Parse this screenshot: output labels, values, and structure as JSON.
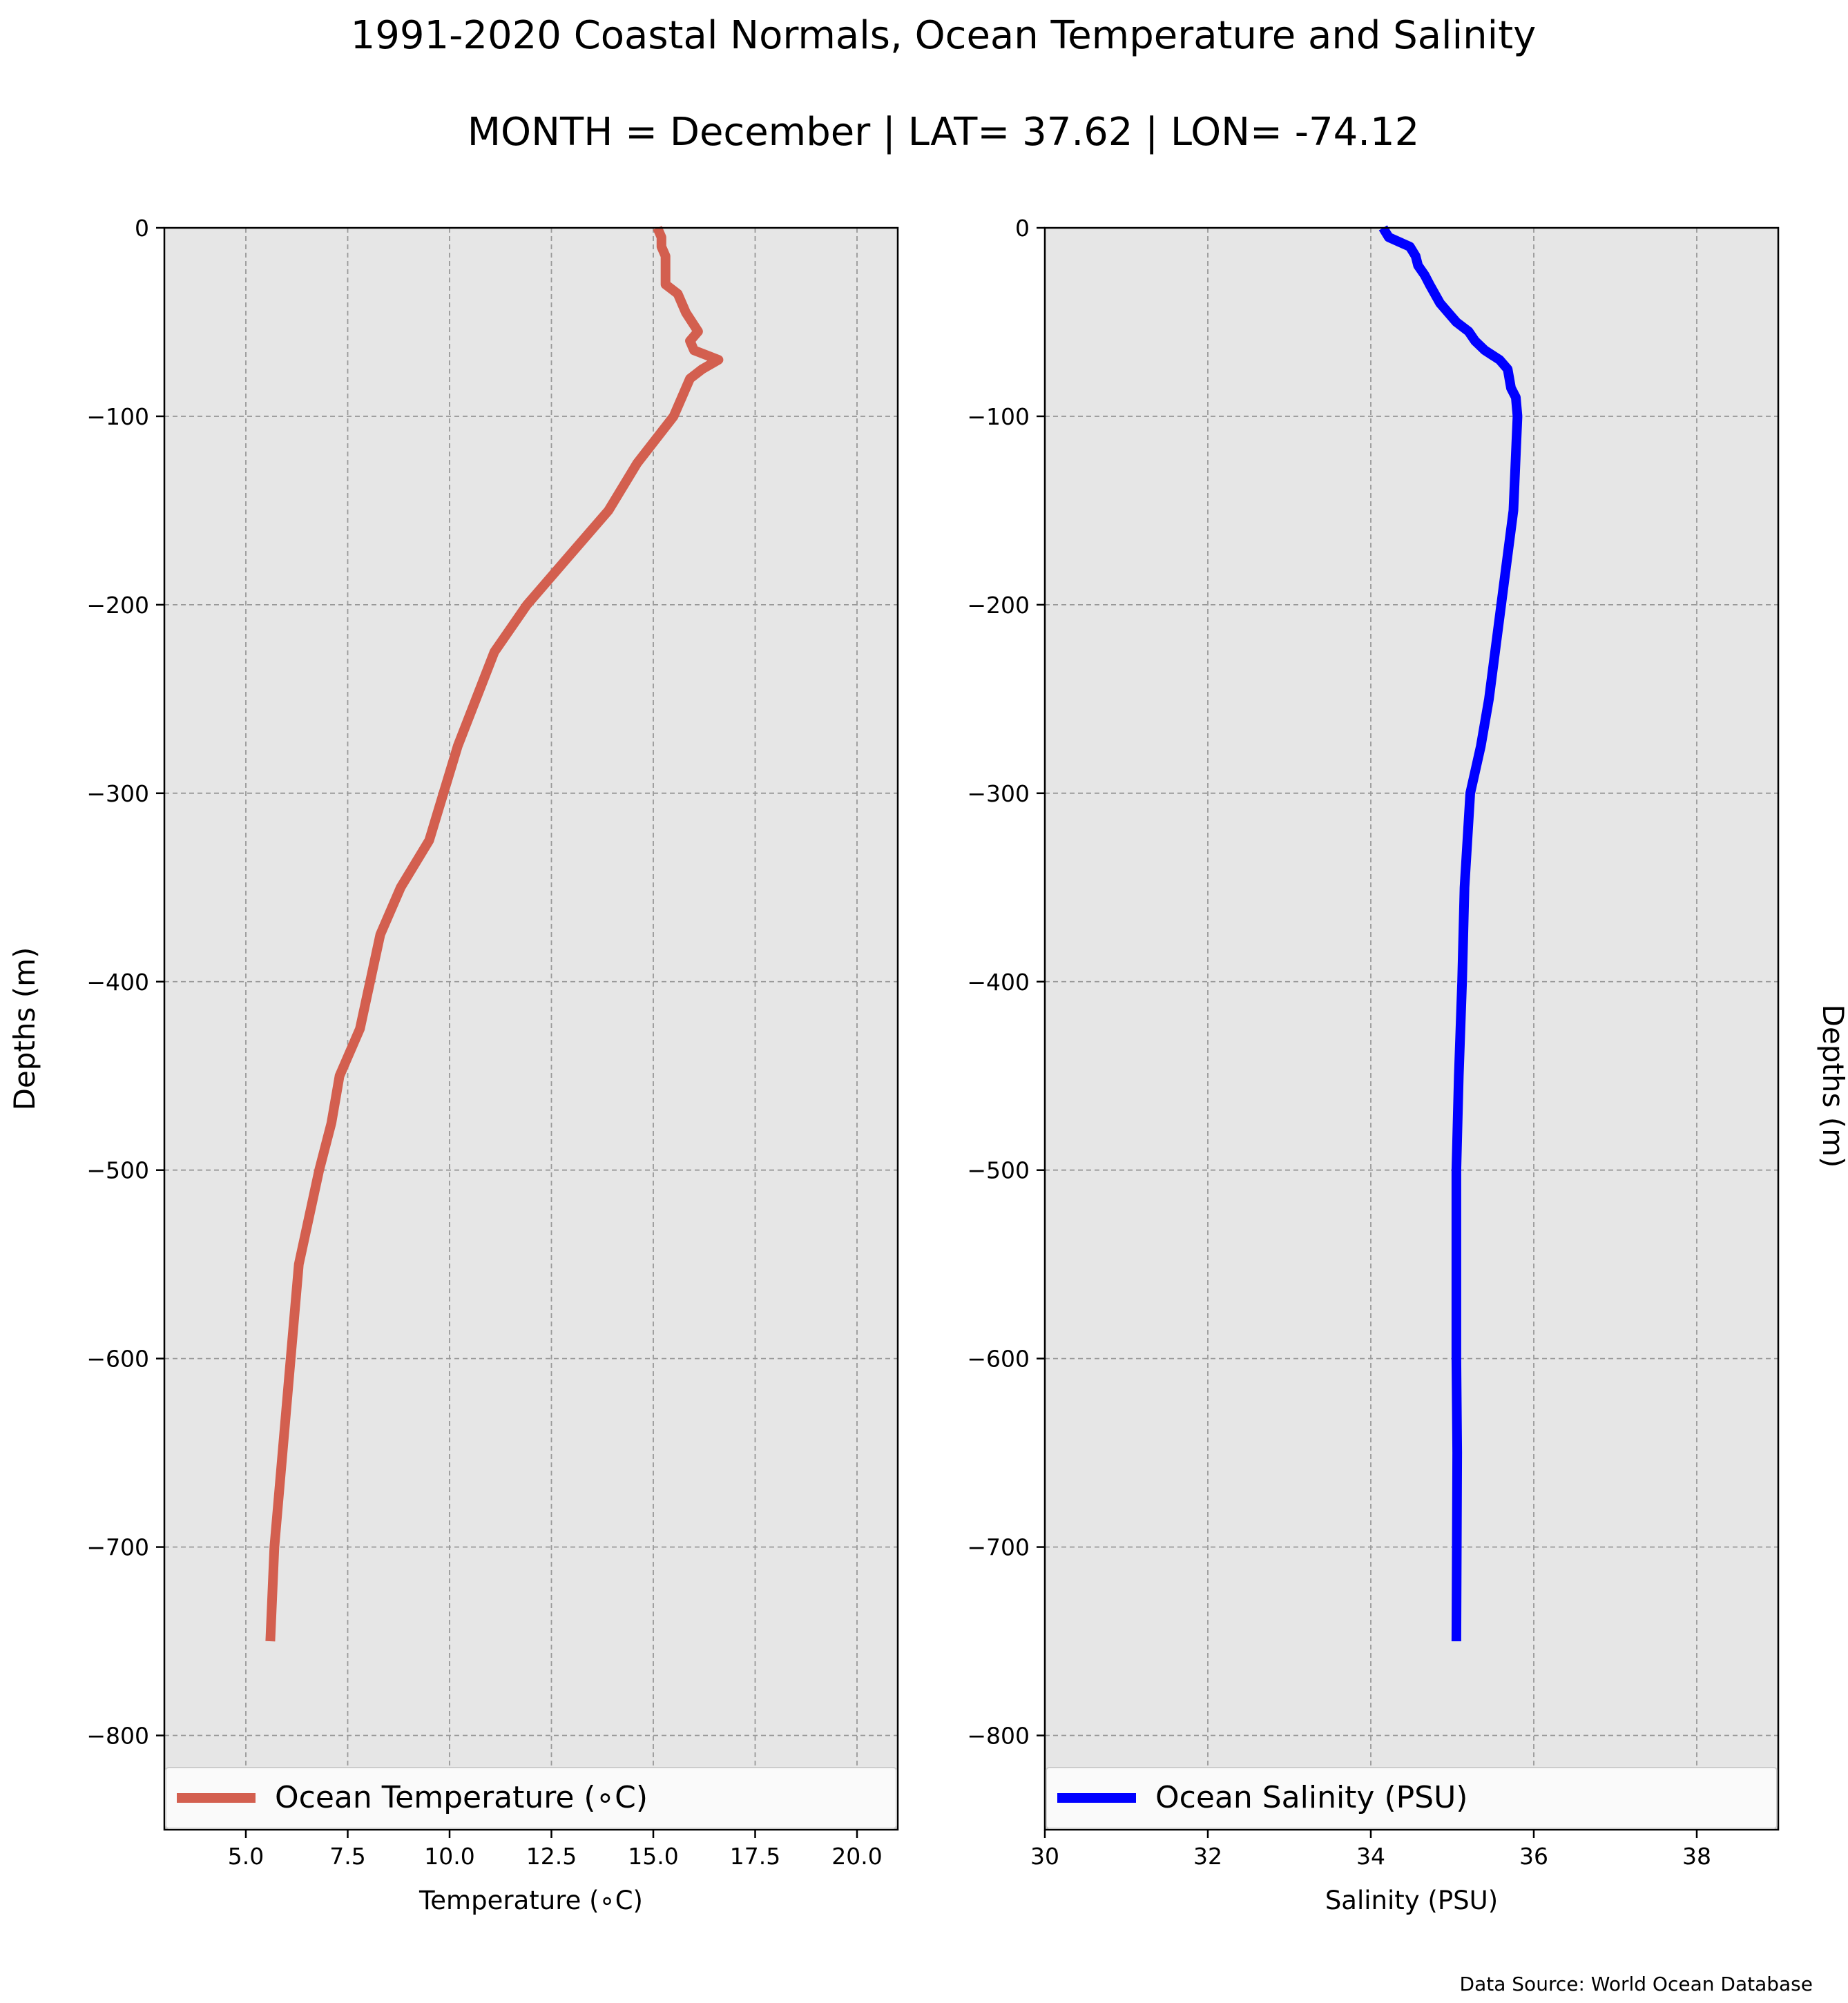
{
  "figure": {
    "title": "1991-2020 Coastal Normals, Ocean Temperature and Salinity",
    "subtitle": "MONTH = December | LAT= 37.62 | LON= -74.12",
    "source_note": "Data Source: World Ocean Database",
    "colors": {
      "temperature": "#d35f4f",
      "salinity": "#0000ff",
      "plot_bg": "#e6e6e6",
      "grid": "#999999"
    }
  },
  "chart_data": [
    {
      "type": "line",
      "xlabel": "Temperature ($^\\circ$C)",
      "xlabel_display": "Temperature (∘C)",
      "ylabel": "Depths (m)",
      "xlim": [
        3,
        21
      ],
      "ylim": [
        -850,
        0
      ],
      "xticks": [
        5.0,
        7.5,
        10.0,
        12.5,
        15.0,
        17.5,
        20.0
      ],
      "xtick_labels": [
        "5.0",
        "7.5",
        "10.0",
        "12.5",
        "15.0",
        "17.5",
        "20.0"
      ],
      "yticks": [
        0,
        -100,
        -200,
        -300,
        -400,
        -500,
        -600,
        -700,
        -800
      ],
      "ytick_labels": [
        "0",
        "−100",
        "−200",
        "−300",
        "−400",
        "−500",
        "−600",
        "−700",
        "−800"
      ],
      "grid": true,
      "legend_position": "bottom",
      "series": [
        {
          "name": "Ocean Temperature (∘C)",
          "color": "#d35f4f",
          "x": [
            15.1,
            15.2,
            15.2,
            15.3,
            15.3,
            15.6,
            15.7,
            15.8,
            16.1,
            15.9,
            16.0,
            16.6,
            16.2,
            15.9,
            15.8,
            15.5,
            14.6,
            13.9,
            12.9,
            11.9,
            11.1,
            10.2,
            9.5,
            8.8,
            8.3,
            7.8,
            7.3,
            7.1,
            6.8,
            6.3,
            5.9,
            5.7,
            5.6
          ],
          "y": [
            0,
            -5,
            -10,
            -15,
            -30,
            -35,
            -40,
            -45,
            -55,
            -60,
            -65,
            -70,
            -75,
            -80,
            -85,
            -100,
            -125,
            -150,
            -175,
            -200,
            -225,
            -275,
            -325,
            -350,
            -375,
            -425,
            -450,
            -475,
            -500,
            -550,
            -650,
            -700,
            -750
          ]
        }
      ]
    },
    {
      "type": "line",
      "xlabel": "Salinity (PSU)",
      "ylabel": "Depths (m)",
      "xlim": [
        30,
        39
      ],
      "ylim": [
        -850,
        0
      ],
      "xticks": [
        30,
        32,
        34,
        36,
        38
      ],
      "xtick_labels": [
        "30",
        "32",
        "34",
        "36",
        "38"
      ],
      "yticks": [
        0,
        -100,
        -200,
        -300,
        -400,
        -500,
        -600,
        -700,
        -800
      ],
      "ytick_labels": [
        "0",
        "−100",
        "−200",
        "−300",
        "−400",
        "−500",
        "−600",
        "−700",
        "−800"
      ],
      "grid": true,
      "legend_position": "bottom",
      "series": [
        {
          "name": "Ocean Salinity (PSU)",
          "color": "#0000ff",
          "x": [
            34.15,
            34.22,
            34.48,
            34.55,
            34.58,
            34.66,
            34.72,
            34.85,
            35.05,
            35.2,
            35.28,
            35.4,
            35.58,
            35.68,
            35.72,
            35.78,
            35.8,
            35.75,
            35.6,
            35.45,
            35.35,
            35.22,
            35.15,
            35.12,
            35.08,
            35.05,
            35.05,
            35.06,
            35.05
          ],
          "y": [
            0,
            -5,
            -10,
            -15,
            -20,
            -25,
            -30,
            -40,
            -50,
            -55,
            -60,
            -65,
            -70,
            -75,
            -85,
            -90,
            -100,
            -150,
            -200,
            -250,
            -275,
            -300,
            -350,
            -400,
            -450,
            -500,
            -600,
            -650,
            -750
          ]
        }
      ]
    }
  ]
}
